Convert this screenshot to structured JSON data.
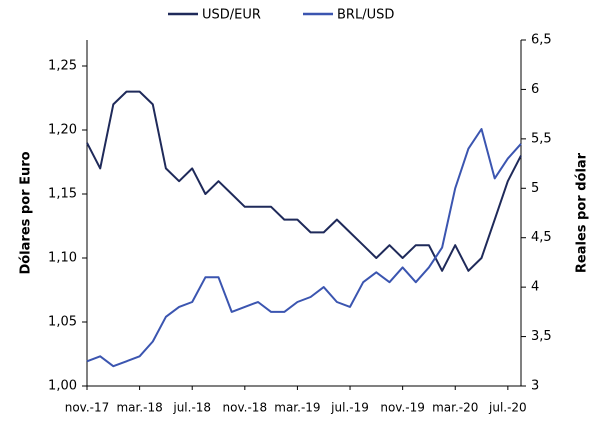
{
  "chart_data": {
    "type": "line",
    "categories": [
      "nov.-17",
      null,
      null,
      null,
      "mar.-18",
      null,
      null,
      null,
      "jul.-18",
      null,
      null,
      null,
      "nov.-18",
      null,
      null,
      null,
      "mar.-19",
      null,
      null,
      null,
      "jul.-19",
      null,
      null,
      null,
      "nov.-19",
      null,
      null,
      null,
      "mar.-20",
      null,
      null,
      null,
      "jul.-20",
      null
    ],
    "series": [
      {
        "name": "USD/EUR",
        "color": "#1f2a5a",
        "axis": "y",
        "values": [
          1.19,
          1.17,
          1.22,
          1.23,
          1.23,
          1.22,
          1.17,
          1.16,
          1.17,
          1.15,
          1.16,
          1.15,
          1.14,
          1.14,
          1.14,
          1.13,
          1.13,
          1.12,
          1.12,
          1.13,
          1.12,
          1.11,
          1.1,
          1.11,
          1.1,
          1.11,
          1.11,
          1.09,
          1.11,
          1.09,
          1.1,
          1.13,
          1.16,
          1.18
        ]
      },
      {
        "name": "BRL/USD",
        "color": "#3b55b0",
        "axis": "y2",
        "values": [
          3.25,
          3.3,
          3.2,
          3.25,
          3.3,
          3.45,
          3.7,
          3.8,
          3.85,
          4.1,
          4.1,
          3.75,
          3.8,
          3.85,
          3.75,
          3.75,
          3.85,
          3.9,
          4.0,
          3.85,
          3.8,
          4.05,
          4.15,
          4.05,
          4.2,
          4.05,
          4.2,
          4.4,
          5.0,
          5.4,
          5.6,
          5.1,
          5.3,
          5.45
        ]
      }
    ],
    "ylabel": "Dólares por Euro",
    "y2label": "Reales por dólar",
    "ylim": [
      1.0,
      1.25
    ],
    "yticks": [
      {
        "value": 1.0,
        "label": "1,00"
      },
      {
        "value": 1.05,
        "label": "1,05"
      },
      {
        "value": 1.1,
        "label": "1,10"
      },
      {
        "value": 1.15,
        "label": "1,15"
      },
      {
        "value": 1.2,
        "label": "1,20"
      },
      {
        "value": 1.25,
        "label": "1,25"
      }
    ],
    "y2lim": [
      3,
      6.5
    ],
    "y2ticks": [
      3,
      {
        "value": 3.5,
        "label": "3,5"
      },
      4,
      {
        "value": 4.5,
        "label": "4,5"
      },
      5,
      {
        "value": 5.5,
        "label": "5,5"
      },
      6,
      {
        "value": 6.5,
        "label": "6,5"
      }
    ],
    "legend": "top"
  }
}
